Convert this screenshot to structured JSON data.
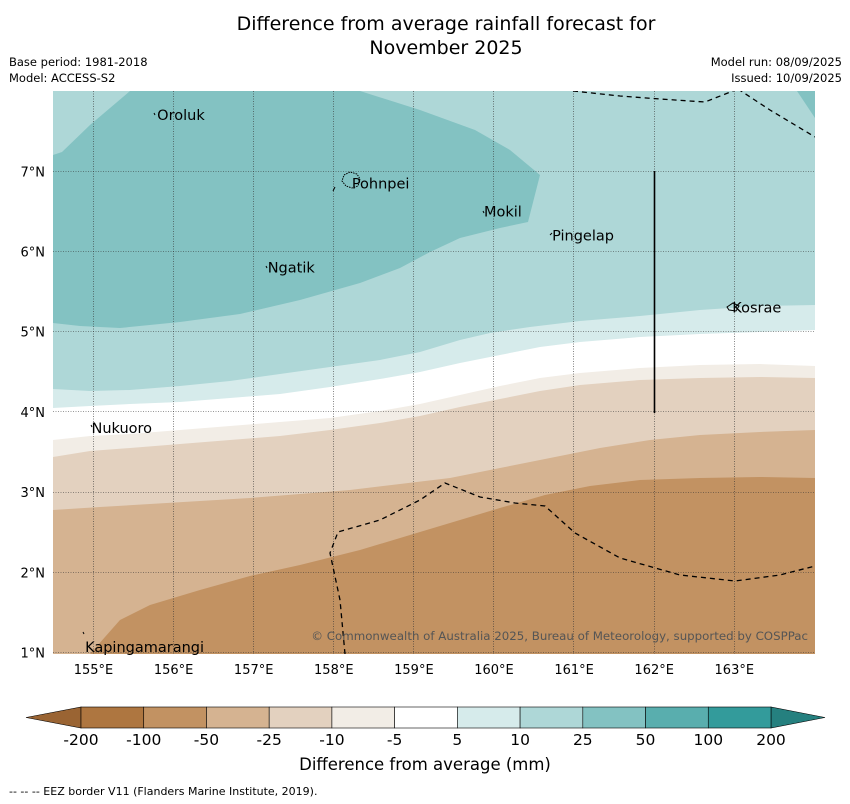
{
  "title_line1": "Difference from average rainfall forecast for",
  "title_line2": "November 2025",
  "meta": {
    "base_period": "Base period: 1981-2018",
    "model": "Model: ACCESS-S2",
    "model_run": "Model run: 08/09/2025",
    "issued": "Issued: 10/09/2025"
  },
  "map": {
    "lon_range": [
      154.5,
      164.0
    ],
    "lat_range": [
      1.0,
      8.0
    ],
    "lon_ticks": [
      155,
      156,
      157,
      158,
      159,
      160,
      161,
      162,
      163
    ],
    "lat_ticks": [
      1,
      2,
      3,
      4,
      5,
      6,
      7
    ],
    "lon_labels": [
      "155°E",
      "156°E",
      "157°E",
      "158°E",
      "159°E",
      "160°E",
      "161°E",
      "162°E",
      "163°E"
    ],
    "lat_labels": [
      "1°N",
      "2°N",
      "3°N",
      "4°N",
      "5°N",
      "6°N",
      "7°N"
    ],
    "places": [
      {
        "name": "Oroluk",
        "lon": 155.77,
        "lat": 7.7
      },
      {
        "name": "Pohnpei",
        "lon": 158.2,
        "lat": 6.85
      },
      {
        "name": "Mokil",
        "lon": 159.85,
        "lat": 6.5
      },
      {
        "name": "Pingelap",
        "lon": 160.7,
        "lat": 6.2
      },
      {
        "name": "Ngatik",
        "lon": 157.15,
        "lat": 5.8
      },
      {
        "name": "Kosrae",
        "lon": 162.95,
        "lat": 5.3
      },
      {
        "name": "Nukuoro",
        "lon": 154.95,
        "lat": 3.8
      },
      {
        "name": "Kapingamarangi",
        "lon": 154.87,
        "lat": 1.07
      }
    ],
    "copyright": "© Commonwealth of Australia 2025, Bureau of Meteorology, supported by COSPPac"
  },
  "colorbar": {
    "labels": [
      "-200",
      "-100",
      "-50",
      "-25",
      "-10",
      "-5",
      "5",
      "10",
      "25",
      "50",
      "100",
      "200"
    ],
    "colors": [
      "#ae7640",
      "#c29262",
      "#d5b391",
      "#e3d1bf",
      "#f2ede6",
      "#ffffff",
      "#d6ebeb",
      "#aed7d7",
      "#83c2c2",
      "#59aeae",
      "#339b9b"
    ],
    "under_color": "#9a6433",
    "over_color": "#25807f",
    "label": "Difference from average (mm)"
  },
  "footnote": "--  --  -- EEZ border V11 (Flanders Marine Institute, 2019)."
}
